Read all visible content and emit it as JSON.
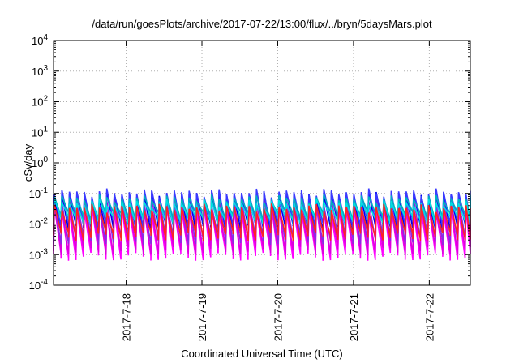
{
  "chart_data": {
    "type": "line",
    "title": "/data/run/goesPlots/archive/2017-07-22/13:00/flux/../bryn/5daysMars.plot",
    "xlabel": "Coordinated Universal Time (UTC)",
    "ylabel": "cSv/day",
    "yscale": "log",
    "ylim": [
      0.0001,
      10000
    ],
    "y_ticks": [
      {
        "value": 0.0001,
        "base": "10",
        "exp": "-4"
      },
      {
        "value": 0.001,
        "base": "10",
        "exp": "-3"
      },
      {
        "value": 0.01,
        "base": "10",
        "exp": "-2"
      },
      {
        "value": 0.1,
        "base": "10",
        "exp": "-1"
      },
      {
        "value": 1,
        "base": "10",
        "exp": "0"
      },
      {
        "value": 10,
        "base": "10",
        "exp": "1"
      },
      {
        "value": 100,
        "base": "10",
        "exp": "2"
      },
      {
        "value": 1000,
        "base": "10",
        "exp": "3"
      },
      {
        "value": 10000,
        "base": "10",
        "exp": "4"
      }
    ],
    "xlim": [
      "2017-07-17T01:00",
      "2017-07-22T13:00"
    ],
    "x_ticks": [
      "2017-7-18",
      "2017-7-19",
      "2017-7-20",
      "2017-7-21",
      "2017-7-22"
    ],
    "grid": true,
    "cycle_hours": 2.37,
    "series": [
      {
        "color": "#ff00ff",
        "peak": 0.03,
        "trough": 0.0009
      },
      {
        "color": "#dd00dd",
        "peak": 0.04,
        "trough": 0.0014
      },
      {
        "color": "#8a2be2",
        "peak": 0.06,
        "trough": 0.003
      },
      {
        "color": "#0000ee",
        "peak": 0.09,
        "trough": 0.007
      },
      {
        "color": "#3a3aff",
        "peak": 0.11,
        "trough": 0.01
      },
      {
        "color": "#00b0c0",
        "peak": 0.07,
        "trough": 0.018
      },
      {
        "color": "#00e0e0",
        "peak": 0.05,
        "trough": 0.013
      },
      {
        "color": "#ff2222",
        "peak": 0.035,
        "trough": 0.004
      }
    ]
  }
}
